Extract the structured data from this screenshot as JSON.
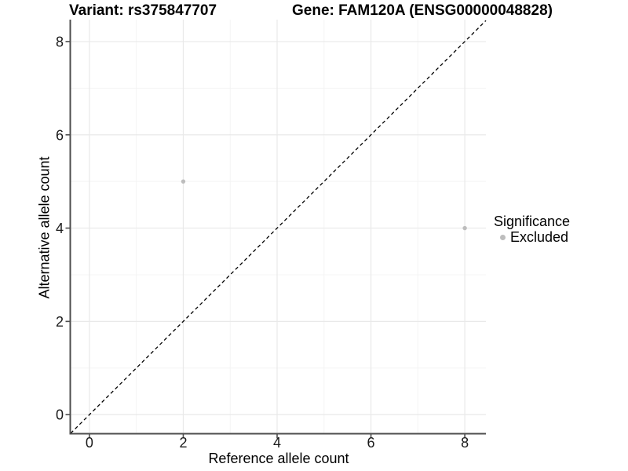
{
  "figure": {
    "title_left": "Variant: rs375847707",
    "title_right": "Gene: FAM120A (ENSG00000048828)"
  },
  "chart_data": {
    "type": "scatter",
    "title": "Variant: rs375847707  Gene: FAM120A (ENSG00000048828)",
    "xlabel": "Reference allele count",
    "ylabel": "Alternative allele count",
    "xlim": [
      -0.4,
      8.45
    ],
    "ylim": [
      -0.4,
      8.47
    ],
    "xticks": [
      0,
      2,
      4,
      6,
      8
    ],
    "yticks": [
      0,
      2,
      4,
      6,
      8
    ],
    "minor_xticks": [
      1,
      3,
      5,
      7
    ],
    "minor_yticks": [
      1,
      3,
      5,
      7
    ],
    "grid": true,
    "series": [
      {
        "name": "Excluded",
        "color": "#bdbdbd",
        "points": [
          {
            "x": 2,
            "y": 5
          },
          {
            "x": 8,
            "y": 4
          }
        ]
      }
    ],
    "reference_line": {
      "type": "identity",
      "slope": 1,
      "intercept": 0,
      "style": "dashed",
      "color": "#000000"
    },
    "legend": {
      "title": "Significance",
      "position": "right",
      "entries": [
        {
          "label": "Excluded",
          "color": "#bdbdbd"
        }
      ]
    },
    "colors": {
      "background": "#ffffff",
      "grid_major": "#e9e9e9",
      "grid_minor": "#f4f4f4",
      "axis_line": "#4d4d4d",
      "tick_label": "#1a1a1a",
      "point": "#bdbdbd"
    }
  }
}
